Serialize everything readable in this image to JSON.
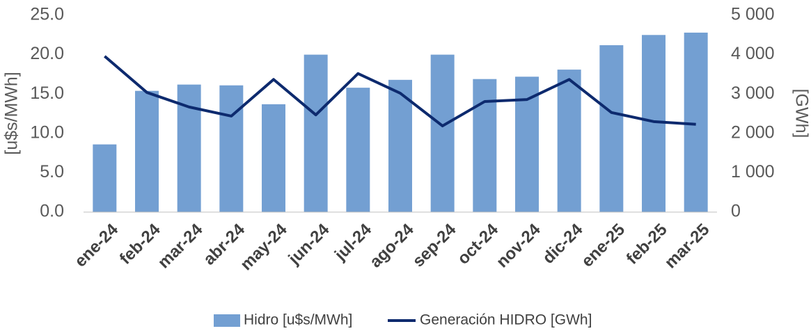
{
  "chart_data": {
    "type": "bar",
    "categories": [
      "ene-24",
      "feb-24",
      "mar-24",
      "abr-24",
      "may-24",
      "jun-24",
      "jul-24",
      "ago-24",
      "sep-24",
      "oct-24",
      "nov-24",
      "dic-24",
      "ene-25",
      "feb-25",
      "mar-25"
    ],
    "series": [
      {
        "name": "Hidro [u$s/MWh]",
        "color": "#739fd2",
        "type": "bar",
        "values": [
          8.6,
          15.4,
          16.2,
          16.1,
          13.7,
          20.0,
          15.8,
          16.8,
          20.0,
          16.9,
          17.2,
          18.1,
          21.2,
          22.5,
          22.8
        ]
      },
      {
        "name": "Generación HIDRO [GWh]",
        "color": "#0d2a6e",
        "type": "line",
        "axis": "y2",
        "values": [
          3960,
          3040,
          2670,
          2440,
          3370,
          2470,
          3520,
          3020,
          2190,
          2810,
          2860,
          3370,
          2530,
          2300,
          2230
        ]
      }
    ],
    "y_label": "[u$s/MWh]",
    "y2_label": "[GWh]",
    "ylim": [
      0,
      25
    ],
    "yticks": [
      {
        "value": 0,
        "label": "0.0"
      },
      {
        "value": 5,
        "label": "5.0"
      },
      {
        "value": 10,
        "label": "10.0"
      },
      {
        "value": 15,
        "label": "15.0"
      },
      {
        "value": 20,
        "label": "20.0"
      },
      {
        "value": 25,
        "label": "25.0"
      }
    ],
    "y2lim": [
      0,
      5000
    ],
    "y2ticks": [
      0,
      {
        "value": 1000,
        "label": "1 000"
      },
      {
        "value": 2000,
        "label": "2 000"
      },
      {
        "value": 3000,
        "label": "3 000"
      },
      {
        "value": 4000,
        "label": "4 000"
      },
      {
        "value": 5000,
        "label": "5 000"
      }
    ],
    "grid": false,
    "legend": "bottom"
  }
}
